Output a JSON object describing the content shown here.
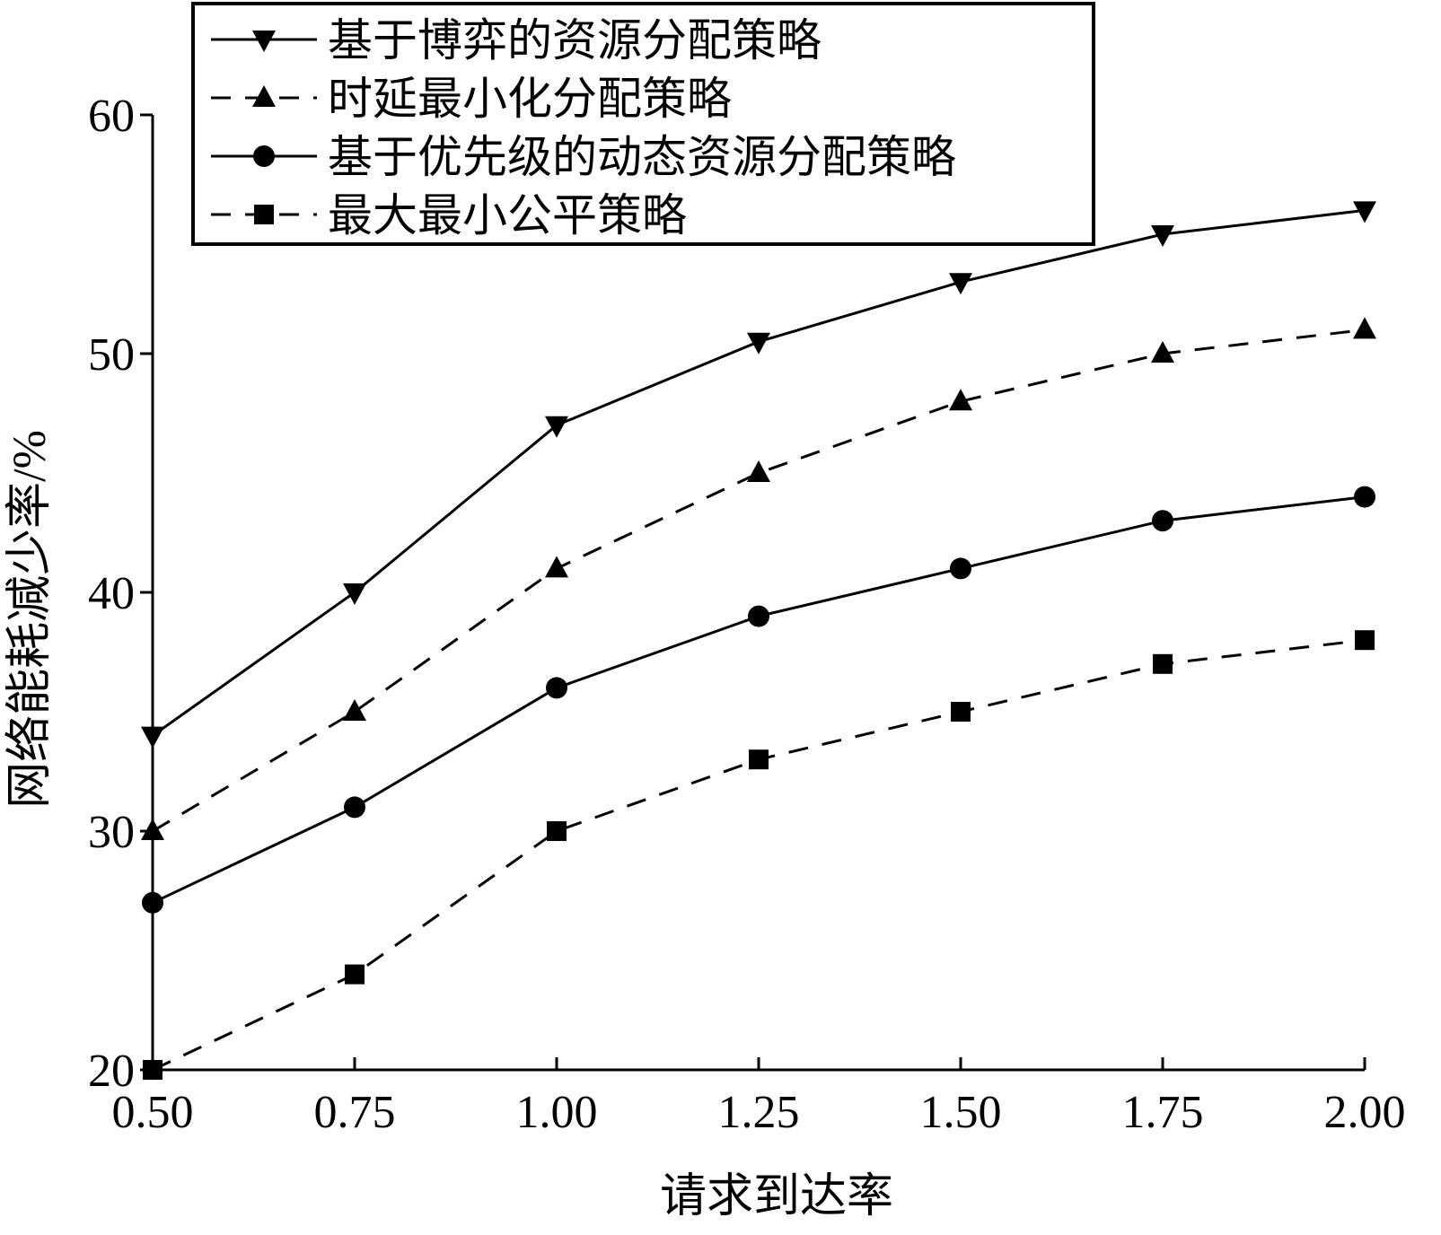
{
  "chart_data": {
    "type": "line",
    "xlabel": "请求到达率",
    "ylabel": "网络能耗减少率/%",
    "x": [
      0.5,
      0.75,
      1.0,
      1.25,
      1.5,
      1.75,
      2.0
    ],
    "x_tick_labels": [
      "0.50",
      "0.75",
      "1.00",
      "1.25",
      "1.50",
      "1.75",
      "2.00"
    ],
    "xlim": [
      0.5,
      2.0
    ],
    "y_ticks": [
      20,
      30,
      40,
      50,
      60
    ],
    "y_tick_labels": [
      "20",
      "30",
      "40",
      "50",
      "60"
    ],
    "ylim": [
      20,
      60
    ],
    "grid": false,
    "legend_position": "top-left",
    "series": [
      {
        "name": "基于博弈的资源分配策略",
        "values": [
          34,
          40,
          47,
          50.5,
          53,
          55,
          56
        ],
        "line_style": "solid",
        "marker": "triangle-down",
        "color": "#000000"
      },
      {
        "name": "时延最小化分配策略",
        "values": [
          30,
          35,
          41,
          45,
          48,
          50,
          51
        ],
        "line_style": "dashed",
        "marker": "triangle-up",
        "color": "#000000"
      },
      {
        "name": "基于优先级的动态资源分配策略",
        "values": [
          27,
          31,
          36,
          39,
          41,
          43,
          44
        ],
        "line_style": "solid",
        "marker": "circle",
        "color": "#000000"
      },
      {
        "name": "最大最小公平策略",
        "values": [
          20,
          24,
          30,
          33,
          35,
          37,
          38
        ],
        "line_style": "dashed",
        "marker": "square",
        "color": "#000000"
      }
    ]
  }
}
